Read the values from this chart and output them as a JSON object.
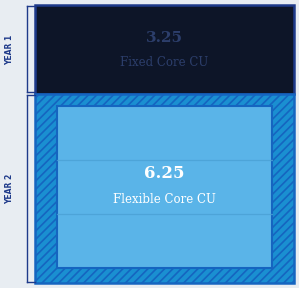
{
  "title1": "3.25",
  "subtitle1": "Fixed Core CU",
  "title2": "6.25",
  "subtitle2": "Flexible Core CU",
  "year1_label": "YEAR 1",
  "year2_label": "YEAR 2",
  "fig_bg": "#e8edf2",
  "year1_box_bg": "#0d1528",
  "year1_box_edge": "#1e3a8a",
  "year1_text_color": "#2c3e6b",
  "outer_hatch_fill": "#1a8fd1",
  "outer_hatch_edge": "#1565c0",
  "inner_fill": "#5ab4e8",
  "inner_edge": "#1565c0",
  "inner_line_color": "#4aa0d5",
  "text2_color": "#ffffff",
  "bracket_color": "#1e3a8a",
  "label_color": "#1e3a8a"
}
